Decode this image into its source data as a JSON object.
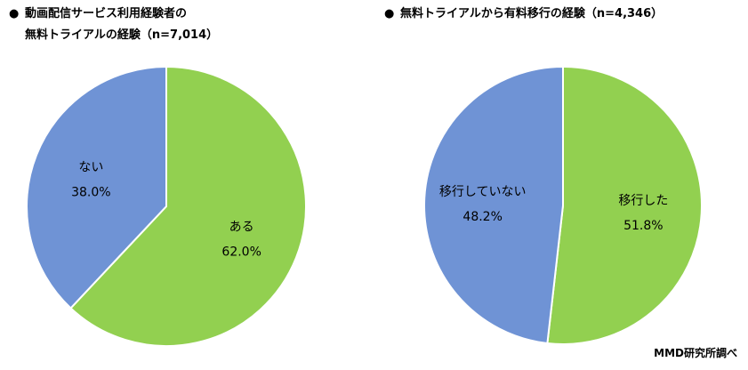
{
  "chart_data": [
    {
      "type": "pie",
      "title_lines": [
        "動画配信サービス利用経験者の",
        "無料トライアルの経験（n=7,014）"
      ],
      "slices": [
        {
          "label": "ある",
          "value": 62.0,
          "value_text": "62.0%",
          "color": "#92d050"
        },
        {
          "label": "ない",
          "value": 38.0,
          "value_text": "38.0%",
          "color": "#6f93d5"
        }
      ]
    },
    {
      "type": "pie",
      "title_lines": [
        "無料トライアルから有料移行の経験（n=4,346）"
      ],
      "slices": [
        {
          "label": "移行した",
          "value": 51.8,
          "value_text": "51.8%",
          "color": "#92d050"
        },
        {
          "label": "移行していない",
          "value": 48.2,
          "value_text": "48.2%",
          "color": "#6f93d5"
        }
      ]
    }
  ],
  "bullet": "●",
  "source": "MMD研究所調べ"
}
